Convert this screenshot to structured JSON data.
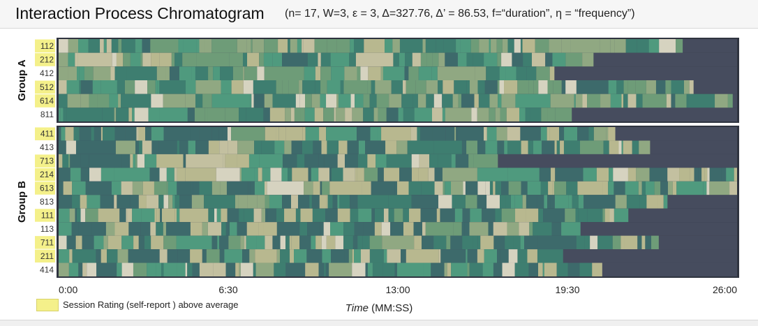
{
  "header": {
    "title": "Interaction Process Chromatogram",
    "params": "(n= 17, W=3, ε = 3, Δ=327.76, Δ’ = 86.53, f=“duration”, η = “frequency”)"
  },
  "legend": {
    "label": "Session Rating (self-report ) above average",
    "highlight_color": "#f4f08a"
  },
  "chart_data": {
    "type": "heatmap",
    "title": "Interaction Process Chromatogram",
    "xlabel_italic": "Time",
    "xlabel_unit": " (MM:SS)",
    "x_ticks": [
      "0:00",
      "6:30",
      "13:00",
      "19:30",
      "26:00"
    ],
    "x_range_seconds": [
      0,
      1560
    ],
    "colors": {
      "inactive": "#464c5e",
      "state_palette": [
        "#3d6a6b",
        "#3e7e70",
        "#4f9a7e",
        "#6e9c78",
        "#90a882",
        "#b8b88f",
        "#c3c0a0",
        "#d6d3c0"
      ]
    },
    "groups": [
      {
        "name": "Group A",
        "sessions": [
          {
            "id": "112",
            "above_average": true,
            "end": "23:55"
          },
          {
            "id": "212",
            "above_average": true,
            "end": "20:30"
          },
          {
            "id": "412",
            "above_average": false,
            "end": "19:00"
          },
          {
            "id": "512",
            "above_average": true,
            "end": "24:20"
          },
          {
            "id": "614",
            "above_average": true,
            "end": "25:50"
          },
          {
            "id": "811",
            "above_average": false,
            "end": "19:40"
          }
        ]
      },
      {
        "name": "Group B",
        "sessions": [
          {
            "id": "411",
            "above_average": true,
            "end": "21:20"
          },
          {
            "id": "413",
            "above_average": false,
            "end": "22:40"
          },
          {
            "id": "713",
            "above_average": true,
            "end": "16:50"
          },
          {
            "id": "214",
            "above_average": true,
            "end": "26:00"
          },
          {
            "id": "613",
            "above_average": true,
            "end": "26:00"
          },
          {
            "id": "813",
            "above_average": false,
            "end": "23:20"
          },
          {
            "id": "111",
            "above_average": true,
            "end": "21:50"
          },
          {
            "id": "113",
            "above_average": false,
            "end": "20:00"
          },
          {
            "id": "711",
            "above_average": true,
            "end": "23:00"
          },
          {
            "id": "211",
            "above_average": true,
            "end": "19:20"
          },
          {
            "id": "414",
            "above_average": false,
            "end": "20:50"
          }
        ]
      }
    ]
  }
}
